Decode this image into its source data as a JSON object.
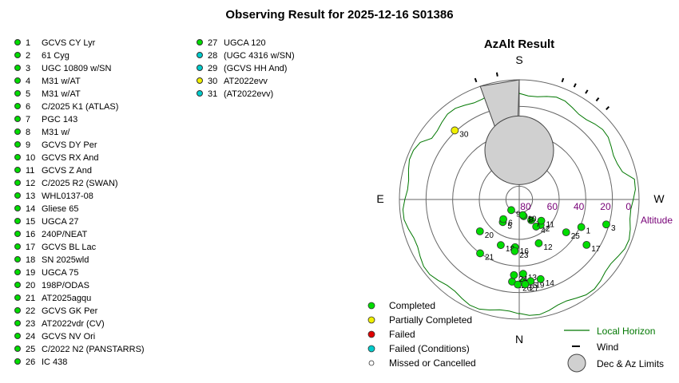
{
  "title": "Observing Result for 2025-12-16 S01386",
  "status_colors": {
    "completed": "#00dd00",
    "partial": "#f0f000",
    "failed": "#e00000",
    "failed_conditions": "#00cccc",
    "missed": "#ffffff"
  },
  "targets": [
    {
      "num": "1",
      "name": "GCVS CY Lyr",
      "status": "completed"
    },
    {
      "num": "2",
      "name": "61 Cyg",
      "status": "completed"
    },
    {
      "num": "3",
      "name": "UGC 10809 w/SN",
      "status": "completed"
    },
    {
      "num": "4",
      "name": "M31 w/AT",
      "status": "completed"
    },
    {
      "num": "5",
      "name": "M31 w/AT",
      "status": "completed"
    },
    {
      "num": "6",
      "name": "C/2025 K1 (ATLAS)",
      "status": "completed"
    },
    {
      "num": "7",
      "name": "PGC 143",
      "status": "completed"
    },
    {
      "num": "8",
      "name": "M31 w/",
      "status": "completed"
    },
    {
      "num": "9",
      "name": "GCVS DY Per",
      "status": "completed"
    },
    {
      "num": "10",
      "name": "GCVS RX And",
      "status": "completed"
    },
    {
      "num": "11",
      "name": "GCVS Z And",
      "status": "completed"
    },
    {
      "num": "12",
      "name": "C/2025 R2 (SWAN)",
      "status": "completed"
    },
    {
      "num": "13",
      "name": "WHL0137-08",
      "status": "completed"
    },
    {
      "num": "14",
      "name": "Gliese 65",
      "status": "completed"
    },
    {
      "num": "15",
      "name": "UGCA 27",
      "status": "completed"
    },
    {
      "num": "16",
      "name": "240P/NEAT",
      "status": "completed"
    },
    {
      "num": "17",
      "name": "GCVS BL Lac",
      "status": "completed"
    },
    {
      "num": "18",
      "name": "SN 2025wld",
      "status": "completed"
    },
    {
      "num": "19",
      "name": "UGCA 75",
      "status": "completed"
    },
    {
      "num": "20",
      "name": "198P/ODAS",
      "status": "completed"
    },
    {
      "num": "21",
      "name": "AT2025agqu",
      "status": "completed"
    },
    {
      "num": "22",
      "name": "GCVS GK Per",
      "status": "completed"
    },
    {
      "num": "23",
      "name": "AT2022vdr (CV)",
      "status": "completed"
    },
    {
      "num": "24",
      "name": "GCVS NV Ori",
      "status": "completed"
    },
    {
      "num": "25",
      "name": "C/2022 N2 (PANSTARRS)",
      "status": "completed"
    },
    {
      "num": "26",
      "name": "IC 438",
      "status": "completed"
    },
    {
      "num": "27",
      "name": "UGCA 120",
      "status": "completed"
    },
    {
      "num": "28",
      "name": "(UGC 4316 w/SN)",
      "status": "failed_conditions"
    },
    {
      "num": "29",
      "name": "(GCVS HH And)",
      "status": "failed_conditions"
    },
    {
      "num": "30",
      "name": "AT2022evv",
      "status": "partial"
    },
    {
      "num": "31",
      "name": "(AT2022evv)",
      "status": "failed_conditions"
    }
  ],
  "azalt": {
    "title": "AzAlt Result",
    "compass": {
      "S": "S",
      "N": "N",
      "E": "E",
      "W": "W"
    },
    "altitude_label": "Altitude",
    "ring_labels": [
      "80",
      "60",
      "40",
      "20",
      "0"
    ],
    "altitude_rings": [
      80,
      60,
      40,
      20,
      0
    ],
    "points": [
      {
        "label": "1",
        "az": 294,
        "alt": 39,
        "status": "completed"
      },
      {
        "label": "2",
        "az": 320,
        "alt": 65,
        "status": "completed"
      },
      {
        "label": "3",
        "az": 286,
        "alt": 22,
        "status": "completed"
      },
      {
        "label": "4",
        "az": 328,
        "alt": 66,
        "status": "completed"
      },
      {
        "label": "5",
        "az": 36,
        "alt": 69,
        "status": "completed"
      },
      {
        "label": "6",
        "az": 39,
        "alt": 71,
        "status": "completed"
      },
      {
        "label": "7",
        "az": 330,
        "alt": 72,
        "status": "completed"
      },
      {
        "label": "8",
        "az": 345,
        "alt": 77,
        "status": "completed"
      },
      {
        "label": "9",
        "az": 37,
        "alt": 80,
        "status": "completed"
      },
      {
        "label": "10",
        "az": 347,
        "alt": 78,
        "status": "completed"
      },
      {
        "label": "11",
        "az": 314,
        "alt": 67,
        "status": "completed"
      },
      {
        "label": "12",
        "az": 336,
        "alt": 54,
        "status": "completed"
      },
      {
        "label": "13",
        "az": 357,
        "alt": 34,
        "status": "completed"
      },
      {
        "label": "14",
        "az": 345,
        "alt": 28,
        "status": "completed"
      },
      {
        "label": "15",
        "az": 357,
        "alt": 28,
        "status": "completed"
      },
      {
        "label": "16",
        "az": 5,
        "alt": 54,
        "status": "completed"
      },
      {
        "label": "17",
        "az": 304,
        "alt": 29,
        "status": "completed"
      },
      {
        "label": "18",
        "az": 22,
        "alt": 53,
        "status": "completed"
      },
      {
        "label": "19",
        "az": 352,
        "alt": 28,
        "status": "completed"
      },
      {
        "label": "20",
        "az": 51,
        "alt": 52,
        "status": "completed"
      },
      {
        "label": "21",
        "az": 36,
        "alt": 40,
        "status": "completed"
      },
      {
        "label": "22",
        "az": 5,
        "alt": 28,
        "status": "completed"
      },
      {
        "label": "23",
        "az": 5,
        "alt": 51,
        "status": "completed"
      },
      {
        "label": "24",
        "az": 4,
        "alt": 33,
        "status": "completed"
      },
      {
        "label": "25",
        "az": 305,
        "alt": 47,
        "status": "completed"
      },
      {
        "label": "26",
        "az": 1,
        "alt": 26,
        "status": "completed"
      },
      {
        "label": "27",
        "az": 356,
        "alt": 26,
        "status": "completed"
      },
      {
        "label": "30",
        "az": 137,
        "alt": 19,
        "status": "partial"
      }
    ],
    "wind_directions": [
      160,
      170,
      200,
      206,
      212,
      218,
      224
    ],
    "limits_note": "Dec & Az Limits"
  },
  "legend": {
    "status_items": [
      {
        "label": "Completed",
        "status": "completed"
      },
      {
        "label": "Partially Completed",
        "status": "partial"
      },
      {
        "label": "Failed",
        "status": "failed"
      },
      {
        "label": "Failed (Conditions)",
        "status": "failed_conditions"
      },
      {
        "label": "Missed or Cancelled",
        "status": "missed"
      }
    ],
    "local_horizon": "Local Horizon",
    "wind": "Wind",
    "limits": "Dec & Az Limits",
    "horizon_color": "#007700",
    "altitude_color": "#770077"
  }
}
